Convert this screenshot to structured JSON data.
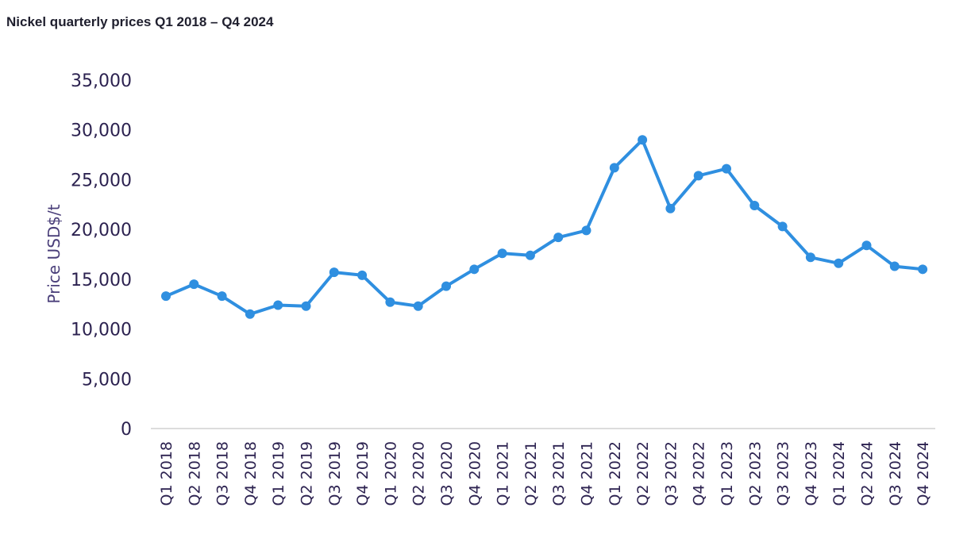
{
  "chart_data": {
    "type": "line",
    "title": "Nickel quarterly prices Q1 2018 – Q4 2024",
    "xlabel": "",
    "ylabel": "Price USD$/t",
    "ylim": [
      0,
      35000
    ],
    "yticks": [
      "0",
      "5,000",
      "10,000",
      "15,000",
      "20,000",
      "25,000",
      "30,000",
      "35,000"
    ],
    "grid": false,
    "legend": "none",
    "color": "#2f8fe0",
    "categories": [
      "Q1 2018",
      "Q2 2018",
      "Q3 2018",
      "Q4 2018",
      "Q1 2019",
      "Q2 2019",
      "Q3 2019",
      "Q4 2019",
      "Q1 2020",
      "Q2 2020",
      "Q3 2020",
      "Q4 2020",
      "Q1 2021",
      "Q2 2021",
      "Q3 2021",
      "Q4 2021",
      "Q1 2022",
      "Q2 2022",
      "Q3 2022",
      "Q4 2022",
      "Q1 2023",
      "Q2 2023",
      "Q3 2023",
      "Q4 2023",
      "Q1 2024",
      "Q2 2024",
      "Q3 2024",
      "Q4 2024"
    ],
    "values": [
      13300,
      14500,
      13300,
      11500,
      12400,
      12300,
      15700,
      15400,
      12700,
      12300,
      14300,
      16000,
      17600,
      17400,
      19200,
      19900,
      26200,
      29000,
      22100,
      25400,
      26100,
      22400,
      20300,
      17200,
      16600,
      18400,
      16300,
      16000
    ]
  }
}
